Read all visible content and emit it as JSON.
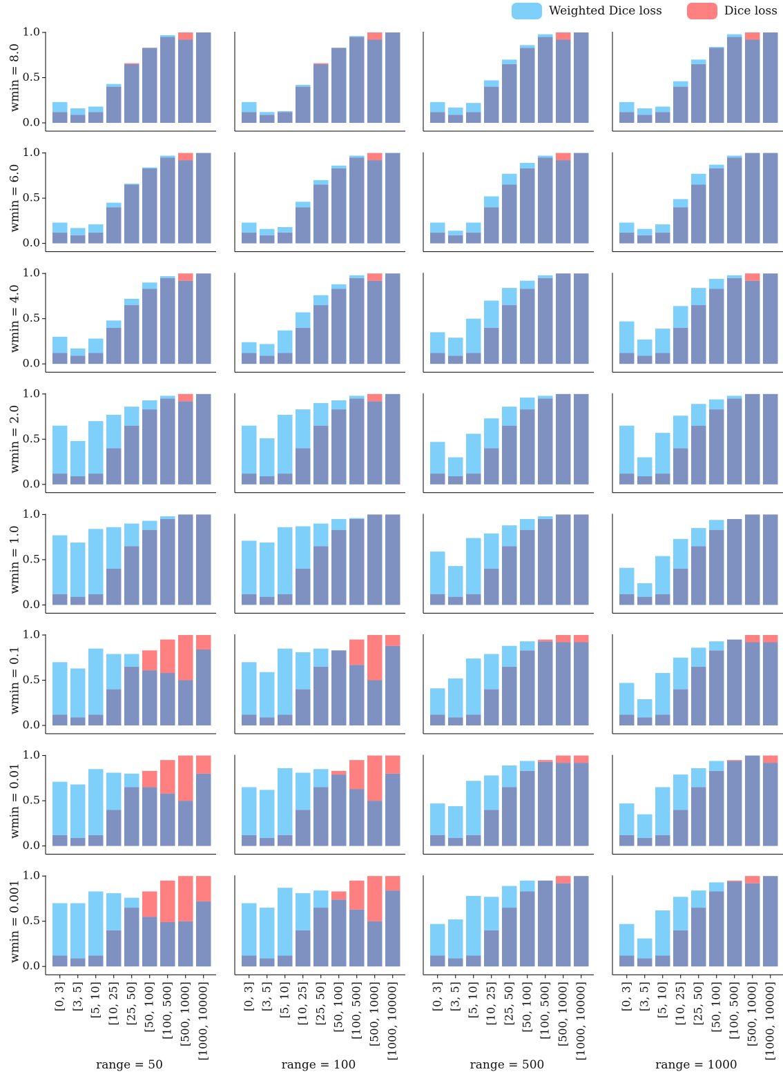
{
  "legend": [
    {
      "label": "Weighted Dice loss",
      "color": "#7fcffb"
    },
    {
      "label": "Dice loss",
      "color": "#fe8080"
    }
  ],
  "colors": {
    "weighted": "#7fcffb",
    "dice": "#fe8080",
    "overlap": "#7f91c0"
  },
  "chart_data": {
    "type": "bar",
    "categories": [
      "[0, 3]",
      "[3, 5]",
      "[5, 10]",
      "[10, 25]",
      "[25, 50]",
      "[50, 100]",
      "[100, 500]",
      "[500, 1000]",
      "[1000, 10000]"
    ],
    "ylim": [
      0,
      1
    ],
    "yticks": [
      "0.0",
      "0.5",
      "1.0"
    ],
    "col_labels": [
      "range = 50",
      "range = 100",
      "range = 500",
      "range = 1000"
    ],
    "row_labels": [
      "wmin = 8.0",
      "wmin = 6.0",
      "wmin = 4.0",
      "wmin = 2.0",
      "wmin = 1.0",
      "wmin = 0.1",
      "wmin = 0.01",
      "wmin = 0.001"
    ],
    "panels": [
      {
        "weighted": [
          0.23,
          0.16,
          0.18,
          0.43,
          0.65,
          0.83,
          0.97,
          0.92,
          1.0
        ],
        "dice": [
          0.12,
          0.09,
          0.12,
          0.4,
          0.66,
          0.83,
          0.95,
          1.0,
          1.0
        ]
      },
      {
        "weighted": [
          0.23,
          0.12,
          0.13,
          0.42,
          0.65,
          0.83,
          0.96,
          0.92,
          1.0
        ],
        "dice": [
          0.12,
          0.09,
          0.12,
          0.4,
          0.66,
          0.83,
          0.95,
          1.0,
          1.0
        ]
      },
      {
        "weighted": [
          0.23,
          0.17,
          0.22,
          0.47,
          0.7,
          0.86,
          0.98,
          0.92,
          1.0
        ],
        "dice": [
          0.12,
          0.09,
          0.12,
          0.4,
          0.65,
          0.83,
          0.95,
          1.0,
          1.0
        ]
      },
      {
        "weighted": [
          0.23,
          0.16,
          0.18,
          0.46,
          0.7,
          0.84,
          0.98,
          0.92,
          1.0
        ],
        "dice": [
          0.12,
          0.09,
          0.12,
          0.4,
          0.65,
          0.83,
          0.95,
          1.0,
          1.0
        ]
      },
      {
        "weighted": [
          0.23,
          0.17,
          0.21,
          0.45,
          0.66,
          0.84,
          0.97,
          0.92,
          1.0
        ],
        "dice": [
          0.12,
          0.09,
          0.12,
          0.4,
          0.65,
          0.83,
          0.95,
          1.0,
          1.0
        ]
      },
      {
        "weighted": [
          0.23,
          0.16,
          0.18,
          0.46,
          0.7,
          0.86,
          0.97,
          0.92,
          1.0
        ],
        "dice": [
          0.12,
          0.09,
          0.12,
          0.4,
          0.65,
          0.83,
          0.95,
          1.0,
          1.0
        ]
      },
      {
        "weighted": [
          0.23,
          0.14,
          0.23,
          0.52,
          0.77,
          0.89,
          0.97,
          0.92,
          1.0
        ],
        "dice": [
          0.12,
          0.09,
          0.12,
          0.4,
          0.65,
          0.83,
          0.95,
          1.0,
          1.0
        ]
      },
      {
        "weighted": [
          0.23,
          0.16,
          0.21,
          0.49,
          0.77,
          0.87,
          0.97,
          1.0,
          1.0
        ],
        "dice": [
          0.12,
          0.09,
          0.12,
          0.4,
          0.65,
          0.83,
          0.95,
          1.0,
          1.0
        ]
      },
      {
        "weighted": [
          0.3,
          0.17,
          0.28,
          0.48,
          0.72,
          0.9,
          0.97,
          0.92,
          1.0
        ],
        "dice": [
          0.12,
          0.09,
          0.12,
          0.4,
          0.65,
          0.83,
          0.95,
          1.0,
          1.0
        ]
      },
      {
        "weighted": [
          0.24,
          0.22,
          0.37,
          0.57,
          0.76,
          0.88,
          0.98,
          0.92,
          1.0
        ],
        "dice": [
          0.12,
          0.09,
          0.12,
          0.4,
          0.65,
          0.83,
          0.95,
          1.0,
          1.0
        ]
      },
      {
        "weighted": [
          0.35,
          0.29,
          0.5,
          0.7,
          0.84,
          0.92,
          0.98,
          1.0,
          1.0
        ],
        "dice": [
          0.12,
          0.09,
          0.12,
          0.4,
          0.65,
          0.83,
          0.95,
          1.0,
          1.0
        ]
      },
      {
        "weighted": [
          0.47,
          0.27,
          0.39,
          0.64,
          0.84,
          0.94,
          0.98,
          0.92,
          1.0
        ],
        "dice": [
          0.12,
          0.09,
          0.12,
          0.4,
          0.65,
          0.83,
          0.95,
          1.0,
          1.0
        ]
      },
      {
        "weighted": [
          0.65,
          0.48,
          0.7,
          0.77,
          0.86,
          0.93,
          0.98,
          0.92,
          1.0
        ],
        "dice": [
          0.12,
          0.09,
          0.12,
          0.4,
          0.65,
          0.83,
          0.95,
          1.0,
          1.0
        ]
      },
      {
        "weighted": [
          0.65,
          0.51,
          0.77,
          0.83,
          0.9,
          0.93,
          0.98,
          0.92,
          1.0
        ],
        "dice": [
          0.12,
          0.09,
          0.12,
          0.4,
          0.65,
          0.83,
          0.95,
          1.0,
          1.0
        ]
      },
      {
        "weighted": [
          0.47,
          0.3,
          0.56,
          0.73,
          0.86,
          0.96,
          0.98,
          1.0,
          1.0
        ],
        "dice": [
          0.12,
          0.09,
          0.12,
          0.4,
          0.65,
          0.83,
          0.95,
          1.0,
          1.0
        ]
      },
      {
        "weighted": [
          0.65,
          0.3,
          0.57,
          0.76,
          0.89,
          0.94,
          0.98,
          1.0,
          1.0
        ],
        "dice": [
          0.12,
          0.09,
          0.12,
          0.4,
          0.65,
          0.83,
          0.95,
          1.0,
          1.0
        ]
      },
      {
        "weighted": [
          0.77,
          0.69,
          0.84,
          0.86,
          0.9,
          0.93,
          0.98,
          1.0,
          1.0
        ],
        "dice": [
          0.12,
          0.09,
          0.12,
          0.4,
          0.65,
          0.83,
          0.95,
          1.0,
          1.0
        ]
      },
      {
        "weighted": [
          0.71,
          0.69,
          0.86,
          0.87,
          0.9,
          0.95,
          0.96,
          1.0,
          1.0
        ],
        "dice": [
          0.12,
          0.09,
          0.12,
          0.4,
          0.65,
          0.83,
          0.95,
          1.0,
          1.0
        ]
      },
      {
        "weighted": [
          0.59,
          0.43,
          0.74,
          0.79,
          0.88,
          0.95,
          0.98,
          1.0,
          1.0
        ],
        "dice": [
          0.12,
          0.09,
          0.12,
          0.4,
          0.65,
          0.83,
          0.95,
          1.0,
          1.0
        ]
      },
      {
        "weighted": [
          0.41,
          0.24,
          0.54,
          0.73,
          0.85,
          0.94,
          0.95,
          1.0,
          1.0
        ],
        "dice": [
          0.12,
          0.09,
          0.12,
          0.4,
          0.65,
          0.83,
          0.95,
          1.0,
          1.0
        ]
      },
      {
        "weighted": [
          0.7,
          0.63,
          0.85,
          0.79,
          0.79,
          0.61,
          0.58,
          0.5,
          0.84
        ],
        "dice": [
          0.12,
          0.09,
          0.12,
          0.4,
          0.65,
          0.83,
          0.95,
          1.0,
          1.0
        ]
      },
      {
        "weighted": [
          0.7,
          0.59,
          0.85,
          0.81,
          0.85,
          0.83,
          0.67,
          0.5,
          0.88
        ],
        "dice": [
          0.12,
          0.09,
          0.12,
          0.4,
          0.65,
          0.83,
          0.95,
          1.0,
          1.0
        ]
      },
      {
        "weighted": [
          0.41,
          0.52,
          0.74,
          0.79,
          0.88,
          0.93,
          0.93,
          0.92,
          0.92
        ],
        "dice": [
          0.12,
          0.09,
          0.12,
          0.4,
          0.65,
          0.83,
          0.95,
          1.0,
          1.0
        ]
      },
      {
        "weighted": [
          0.47,
          0.29,
          0.58,
          0.75,
          0.86,
          0.93,
          0.95,
          0.92,
          0.92
        ],
        "dice": [
          0.12,
          0.09,
          0.12,
          0.4,
          0.65,
          0.83,
          0.95,
          1.0,
          1.0
        ]
      },
      {
        "weighted": [
          0.71,
          0.68,
          0.85,
          0.81,
          0.8,
          0.65,
          0.58,
          0.5,
          0.8
        ],
        "dice": [
          0.12,
          0.09,
          0.12,
          0.4,
          0.65,
          0.83,
          0.95,
          1.0,
          1.0
        ]
      },
      {
        "weighted": [
          0.65,
          0.62,
          0.86,
          0.81,
          0.85,
          0.79,
          0.63,
          0.5,
          0.8
        ],
        "dice": [
          0.12,
          0.09,
          0.12,
          0.4,
          0.65,
          0.83,
          0.95,
          1.0,
          1.0
        ]
      },
      {
        "weighted": [
          0.47,
          0.44,
          0.72,
          0.78,
          0.89,
          0.94,
          0.93,
          0.92,
          0.92
        ],
        "dice": [
          0.12,
          0.09,
          0.12,
          0.4,
          0.65,
          0.83,
          0.95,
          1.0,
          1.0
        ]
      },
      {
        "weighted": [
          0.47,
          0.35,
          0.65,
          0.79,
          0.86,
          0.94,
          0.94,
          1.0,
          0.92
        ],
        "dice": [
          0.12,
          0.09,
          0.12,
          0.4,
          0.65,
          0.83,
          0.95,
          1.0,
          1.0
        ]
      },
      {
        "weighted": [
          0.7,
          0.7,
          0.83,
          0.81,
          0.76,
          0.55,
          0.49,
          0.5,
          0.72
        ],
        "dice": [
          0.12,
          0.09,
          0.12,
          0.4,
          0.65,
          0.83,
          0.95,
          1.0,
          1.0
        ]
      },
      {
        "weighted": [
          0.7,
          0.65,
          0.87,
          0.81,
          0.84,
          0.74,
          0.63,
          0.5,
          0.84
        ],
        "dice": [
          0.12,
          0.09,
          0.12,
          0.4,
          0.65,
          0.83,
          0.95,
          1.0,
          1.0
        ]
      },
      {
        "weighted": [
          0.47,
          0.52,
          0.78,
          0.77,
          0.89,
          0.95,
          0.95,
          0.92,
          1.0
        ],
        "dice": [
          0.12,
          0.09,
          0.12,
          0.4,
          0.65,
          0.83,
          0.95,
          1.0,
          1.0
        ]
      },
      {
        "weighted": [
          0.47,
          0.31,
          0.62,
          0.77,
          0.84,
          0.93,
          0.94,
          0.92,
          1.0
        ],
        "dice": [
          0.12,
          0.09,
          0.12,
          0.4,
          0.65,
          0.83,
          0.95,
          1.0,
          1.0
        ]
      }
    ]
  }
}
